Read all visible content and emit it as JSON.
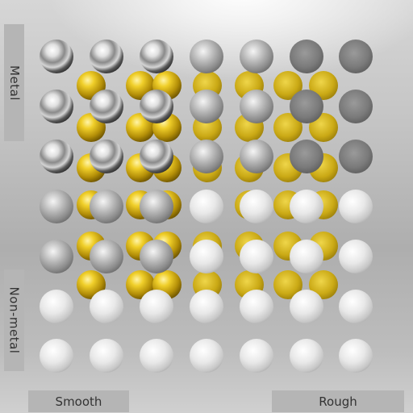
{
  "labels": {
    "metal": "Metal",
    "non_metal": "Non-metal",
    "smooth": "Smooth",
    "rough": "Rough"
  },
  "grid": {
    "roughness_steps": 7,
    "metallic_steps": 7
  },
  "colors": {
    "silver": "#d8d8d8",
    "gold": "#d4b21a"
  }
}
